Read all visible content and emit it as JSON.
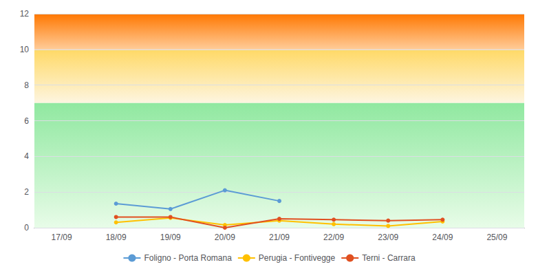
{
  "chart_data": {
    "type": "line",
    "categories": [
      "17/09",
      "18/09",
      "19/09",
      "20/09",
      "21/09",
      "22/09",
      "23/09",
      "24/09",
      "25/09"
    ],
    "series": [
      {
        "name": "Foligno - Porta Romana",
        "color": "#5b9bd5",
        "marker": "circle",
        "values": [
          null,
          1.35,
          1.05,
          2.1,
          1.5,
          null,
          null,
          null,
          null
        ]
      },
      {
        "name": "Perugia - Fontivegge",
        "color": "#ffc000",
        "marker": "circle",
        "values": [
          null,
          0.3,
          0.55,
          0.15,
          0.4,
          0.2,
          0.1,
          0.35,
          null
        ]
      },
      {
        "name": "Terni - Carrara",
        "color": "#e05020",
        "marker": "circle",
        "values": [
          null,
          0.6,
          0.6,
          0.0,
          0.5,
          0.45,
          0.4,
          0.45,
          null
        ]
      }
    ],
    "bands": [
      {
        "ymin": 0,
        "ymax": 7,
        "color_bottom": "#e8fce8",
        "color_top": "#90e8a0"
      },
      {
        "ymin": 7,
        "ymax": 10,
        "color_bottom": "#fdf5e0",
        "color_top": "#ffd966"
      },
      {
        "ymin": 10,
        "ymax": 12,
        "color_bottom": "#ffcc99",
        "color_top": "#ff7700"
      }
    ],
    "ylim": [
      0,
      12
    ],
    "yticks": [
      0,
      2,
      4,
      6,
      8,
      10,
      12
    ],
    "grid": true,
    "legend": "bottom"
  }
}
